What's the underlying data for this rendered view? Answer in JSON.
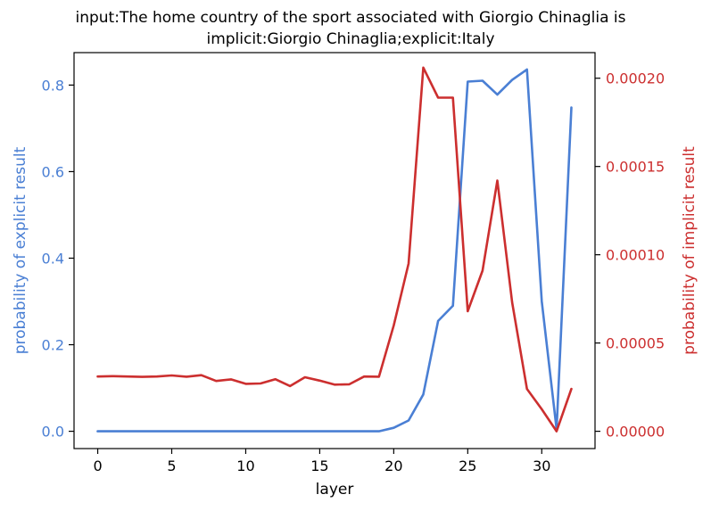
{
  "chart_data": {
    "type": "line",
    "title_lines": [
      "input:The home country of the sport associated with Giorgio Chinaglia is",
      "implicit:Giorgio Chinaglia;explicit:Italy"
    ],
    "xlabel": "layer",
    "ylabel_left": "probability of explicit result",
    "ylabel_right": "probability of implicit result",
    "xlim": [
      -1.6,
      33.6
    ],
    "ylim_left": [
      -0.04,
      0.875
    ],
    "ylim_right": [
      -9.8e-06,
      0.0002145
    ],
    "xticks": [
      0,
      5,
      10,
      15,
      20,
      25,
      30
    ],
    "xtick_labels": [
      "0",
      "5",
      "10",
      "15",
      "20",
      "25",
      "30"
    ],
    "yticks_left": [
      0.0,
      0.2,
      0.4,
      0.6,
      0.8
    ],
    "ytick_labels_left": [
      "0.0",
      "0.2",
      "0.4",
      "0.6",
      "0.8"
    ],
    "yticks_right": [
      0.0,
      5e-05,
      0.0001,
      0.00015,
      0.0002
    ],
    "ytick_labels_right": [
      "0.00000",
      "0.00005",
      "0.00010",
      "0.00015",
      "0.00020"
    ],
    "grid": false,
    "x": [
      0,
      1,
      2,
      3,
      4,
      5,
      6,
      7,
      8,
      9,
      10,
      11,
      12,
      13,
      14,
      15,
      16,
      17,
      18,
      19,
      20,
      21,
      22,
      23,
      24,
      25,
      26,
      27,
      28,
      29,
      30,
      31,
      32
    ],
    "series": [
      {
        "axis": "left",
        "color": "#4a7fd4",
        "values": [
          0,
          0,
          0,
          0,
          0,
          0,
          0,
          0,
          0,
          0,
          0,
          0,
          0,
          0,
          0,
          0,
          0,
          0,
          0,
          0,
          0.008,
          0.025,
          0.085,
          0.255,
          0.29,
          0.808,
          0.81,
          0.778,
          0.812,
          0.836,
          0.3,
          0.005,
          0.748
        ]
      },
      {
        "axis": "right",
        "color": "#cc2f2f",
        "values": [
          3.1e-05,
          3.12e-05,
          3.1e-05,
          3.08e-05,
          3.1e-05,
          3.16e-05,
          3.09e-05,
          3.18e-05,
          2.85e-05,
          2.94e-05,
          2.69e-05,
          2.71e-05,
          2.95e-05,
          2.56e-05,
          3.06e-05,
          2.87e-05,
          2.64e-05,
          2.66e-05,
          3.1e-05,
          3.09e-05,
          6e-05,
          9.5e-05,
          0.000206,
          0.000189,
          0.000189,
          6.8e-05,
          9.1e-05,
          0.000142,
          7.3e-05,
          2.4e-05,
          1.25e-05,
          0.0,
          2.4e-05
        ]
      }
    ],
    "axis_colors": {
      "left": "#4a7fd4",
      "right": "#cc2f2f"
    }
  }
}
